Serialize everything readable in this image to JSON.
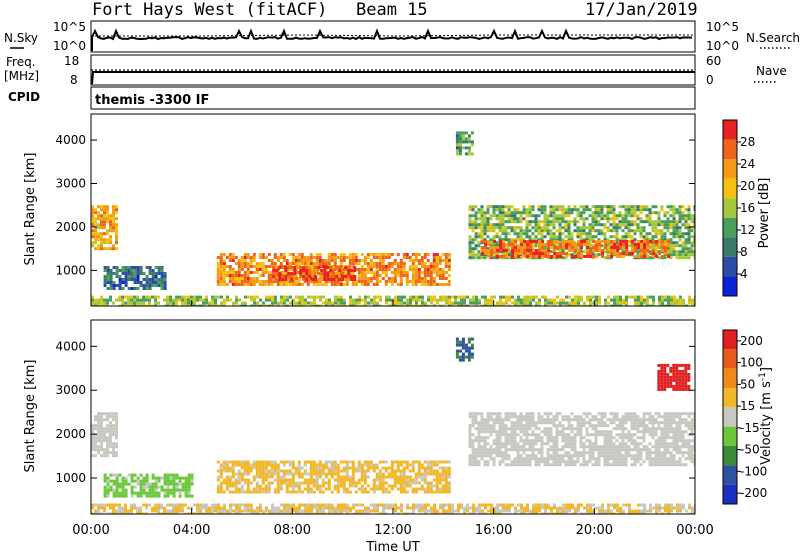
{
  "header": {
    "station": "Fort Hays West (fitACF)",
    "beam": "Beam 15",
    "date": "17/Jan/2019"
  },
  "panels": {
    "noise": {
      "left_label": "N.Sky",
      "right_label": "N.Search",
      "left_ticks": [
        "10^5",
        "10^0"
      ],
      "right_ticks": [
        "10^5",
        "10^0"
      ]
    },
    "freq": {
      "left_label_1": "Freq.",
      "left_label_2": "[MHz]",
      "right_label": "Nave",
      "left_ticks": [
        "18",
        "8"
      ],
      "right_ticks": [
        "60",
        "0"
      ]
    },
    "cpid": {
      "label": "CPID",
      "text": "themis -3300 IF"
    }
  },
  "time_axis": {
    "label": "Time UT",
    "ticks": [
      "00:00",
      "04:00",
      "08:00",
      "12:00",
      "16:00",
      "20:00",
      "00:00"
    ]
  },
  "colors": {
    "power": [
      "#0a22d8",
      "#2c4aa8",
      "#3a7a6a",
      "#4aa05a",
      "#a8c83c",
      "#f2c20e",
      "#f59a12",
      "#f0641a",
      "#e82222"
    ],
    "velocity": [
      "#1a30c0",
      "#3050a0",
      "#3a8a3a",
      "#6ac83a",
      "#c8c8c0",
      "#f2b82a",
      "#f08a1a",
      "#e85a1a",
      "#e02020"
    ]
  },
  "chart_data": [
    {
      "type": "heatmap",
      "name": "power",
      "title": "",
      "xlabel": "Time UT",
      "ylabel": "Slant Range [km]",
      "xlim": [
        0,
        24
      ],
      "ylim": [
        180,
        4600
      ],
      "yticks": [
        1000,
        2000,
        3000,
        4000
      ],
      "colorbar": {
        "label": "Power [dB]",
        "ticks": [
          4,
          8,
          12,
          16,
          20,
          24,
          28
        ],
        "range": [
          0,
          32
        ]
      },
      "regions": [
        {
          "t0": 5.0,
          "t1": 14.2,
          "r0": 700,
          "r1": 1400,
          "value": 24
        },
        {
          "t0": 7.2,
          "t1": 10.5,
          "r0": 800,
          "r1": 1100,
          "value": 29
        },
        {
          "t0": 0.5,
          "t1": 3.0,
          "r0": 600,
          "r1": 1100,
          "value": 8
        },
        {
          "t0": 0.0,
          "t1": 1.0,
          "r0": 1500,
          "r1": 2500,
          "value": 22
        },
        {
          "t0": 15.0,
          "t1": 24.0,
          "r0": 1300,
          "r1": 2500,
          "value": 14
        },
        {
          "t0": 15.5,
          "t1": 23.0,
          "r0": 1300,
          "r1": 1700,
          "value": 26
        },
        {
          "t0": 0.0,
          "t1": 24.0,
          "r0": 200,
          "r1": 420,
          "value": 16
        },
        {
          "t0": 14.5,
          "t1": 15.2,
          "r0": 3700,
          "r1": 4200,
          "value": 12
        }
      ]
    },
    {
      "type": "heatmap",
      "name": "velocity",
      "title": "",
      "xlabel": "Time UT",
      "ylabel": "Slant Range [km]",
      "xlim": [
        0,
        24
      ],
      "ylim": [
        180,
        4600
      ],
      "yticks": [
        1000,
        2000,
        3000,
        4000
      ],
      "colorbar": {
        "label": "Velocity [m s-1]",
        "ticks": [
          200,
          100,
          50,
          15,
          -15,
          -50,
          -100,
          -200
        ],
        "range": [
          -250,
          250
        ]
      },
      "regions": [
        {
          "t0": 5.0,
          "t1": 14.2,
          "r0": 700,
          "r1": 1400,
          "value": -40
        },
        {
          "t0": 0.5,
          "t1": 4.0,
          "r0": 600,
          "r1": 1100,
          "value": 40
        },
        {
          "t0": 0.0,
          "t1": 1.0,
          "r0": 1500,
          "r1": 2500,
          "value": -5
        },
        {
          "t0": 15.0,
          "t1": 24.0,
          "r0": 1300,
          "r1": 2500,
          "value": 0
        },
        {
          "t0": 0.0,
          "t1": 24.0,
          "r0": 200,
          "r1": 420,
          "value": -30
        },
        {
          "t0": 14.5,
          "t1": 15.2,
          "r0": 3700,
          "r1": 4200,
          "value": 150
        },
        {
          "t0": 22.5,
          "t1": 23.8,
          "r0": 3000,
          "r1": 3600,
          "value": -220
        }
      ]
    }
  ]
}
